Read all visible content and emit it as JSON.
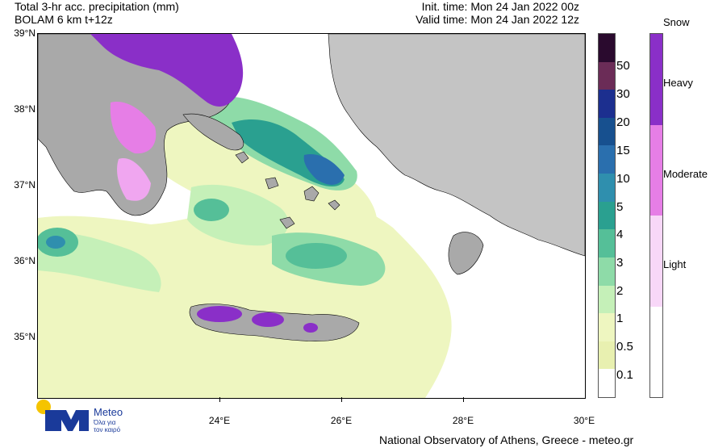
{
  "header": {
    "title_line1": "Total 3-hr acc. precipitation (mm)",
    "title_line2": "BOLAM 6 km t+12z",
    "init_time": "Init. time: Mon 24 Jan 2022 00z",
    "valid_time": "Valid time: Mon 24 Jan 2022 12z"
  },
  "map": {
    "lat_labels": [
      "39°N",
      "38°N",
      "37°N",
      "36°N",
      "35°N"
    ],
    "lon_labels": [
      "24°E",
      "26°E",
      "28°E",
      "30°E"
    ],
    "colors": {
      "sea": "#ffffff",
      "land_greece": "#a9a9a9",
      "land_turkey": "#c4c4c4",
      "coast": "#000000"
    }
  },
  "precip_legend": {
    "labels": [
      "50",
      "30",
      "20",
      "15",
      "10",
      "5",
      "4",
      "3",
      "2",
      "1",
      "0.5",
      "0.1"
    ],
    "colors": [
      "#2a0a2e",
      "#6b2c57",
      "#1c2f8f",
      "#17508f",
      "#2a6fae",
      "#2f8fae",
      "#2aa090",
      "#55bf98",
      "#8edba8",
      "#c5f0b8",
      "#eef6c0",
      "#e8f0b0",
      "#ffffff"
    ]
  },
  "snow_legend": {
    "title": "Snow",
    "labels": [
      "Heavy",
      "Moderate",
      "Light"
    ],
    "colors": [
      "#8a2fc8",
      "#e67ee6",
      "#f8d7f8",
      "#ffffff"
    ]
  },
  "logo": {
    "word": "Meteo",
    "tagline_line1": "Όλα για",
    "tagline_line2": "τον καιρό",
    "colors": {
      "blue": "#1a3a9a",
      "yellow": "#f5c400"
    }
  },
  "footer": "National Observatory of Athens, Greece - meteo.gr"
}
